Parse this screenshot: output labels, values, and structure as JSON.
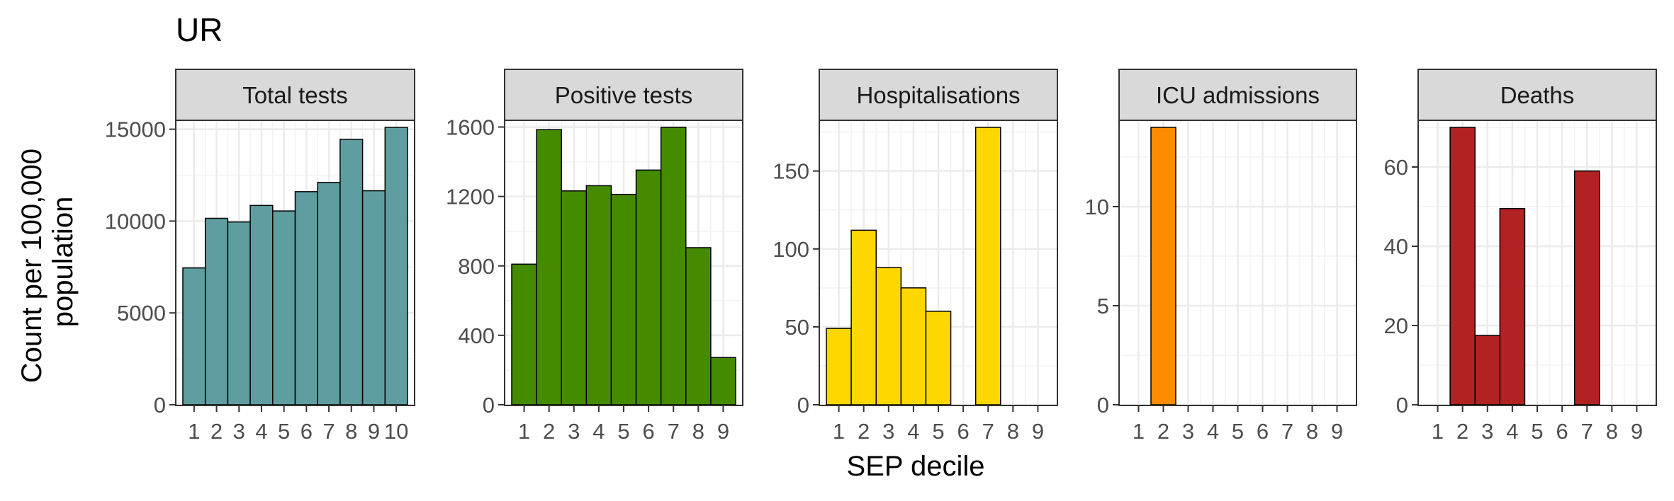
{
  "title": "UR",
  "xlabel": "SEP decile",
  "ylabel_lines": [
    "Count per 100,000",
    "population"
  ],
  "chart_data": [
    {
      "type": "bar",
      "title": "Total tests",
      "fill": "#5f9ea0",
      "categories": [
        "1",
        "2",
        "3",
        "4",
        "5",
        "6",
        "7",
        "8",
        "9",
        "10"
      ],
      "values": [
        7450,
        10150,
        9950,
        10850,
        10550,
        11600,
        12100,
        14450,
        11650,
        15100
      ],
      "ylim": [
        0,
        15100
      ],
      "yticks": [
        0,
        5000,
        10000,
        15000
      ],
      "ytick_labels": [
        "0",
        "5000",
        "10000",
        "15000"
      ]
    },
    {
      "type": "bar",
      "title": "Positive tests",
      "fill": "#458b00",
      "categories": [
        "1",
        "2",
        "3",
        "4",
        "5",
        "6",
        "7",
        "8",
        "9"
      ],
      "values": [
        810,
        1585,
        1232,
        1262,
        1212,
        1352,
        1598,
        905,
        272
      ],
      "ylim": [
        0,
        1598
      ],
      "yticks": [
        0,
        400,
        800,
        1200,
        1600
      ],
      "ytick_labels": [
        "0",
        "400",
        "800",
        "1200",
        "1600"
      ]
    },
    {
      "type": "bar",
      "title": "Hospitalisations",
      "fill": "#ffd700",
      "categories": [
        "1",
        "2",
        "3",
        "4",
        "5",
        "6",
        "7",
        "8",
        "9"
      ],
      "values": [
        49,
        112,
        88,
        75,
        60,
        0,
        178,
        0,
        0
      ],
      "ylim": [
        0,
        178
      ],
      "yticks": [
        0,
        50,
        100,
        150
      ],
      "ytick_labels": [
        "0",
        "50",
        "100",
        "150"
      ]
    },
    {
      "type": "bar",
      "title": "ICU admissions",
      "fill": "#ff8c00",
      "categories": [
        "1",
        "2",
        "3",
        "4",
        "5",
        "6",
        "7",
        "8",
        "9"
      ],
      "values": [
        0,
        14,
        0,
        0,
        0,
        0,
        0,
        0,
        0
      ],
      "ylim": [
        0,
        14
      ],
      "yticks": [
        0,
        5,
        10
      ],
      "ytick_labels": [
        "0",
        "5",
        "10"
      ]
    },
    {
      "type": "bar",
      "title": "Deaths",
      "fill": "#b22222",
      "categories": [
        "1",
        "2",
        "3",
        "4",
        "5",
        "6",
        "7",
        "8",
        "9"
      ],
      "values": [
        0,
        70,
        17.5,
        49.5,
        0,
        0,
        59,
        0,
        0
      ],
      "ylim": [
        0,
        70
      ],
      "yticks": [
        0,
        20,
        40,
        60
      ],
      "ytick_labels": [
        "0",
        "20",
        "40",
        "60"
      ]
    }
  ]
}
